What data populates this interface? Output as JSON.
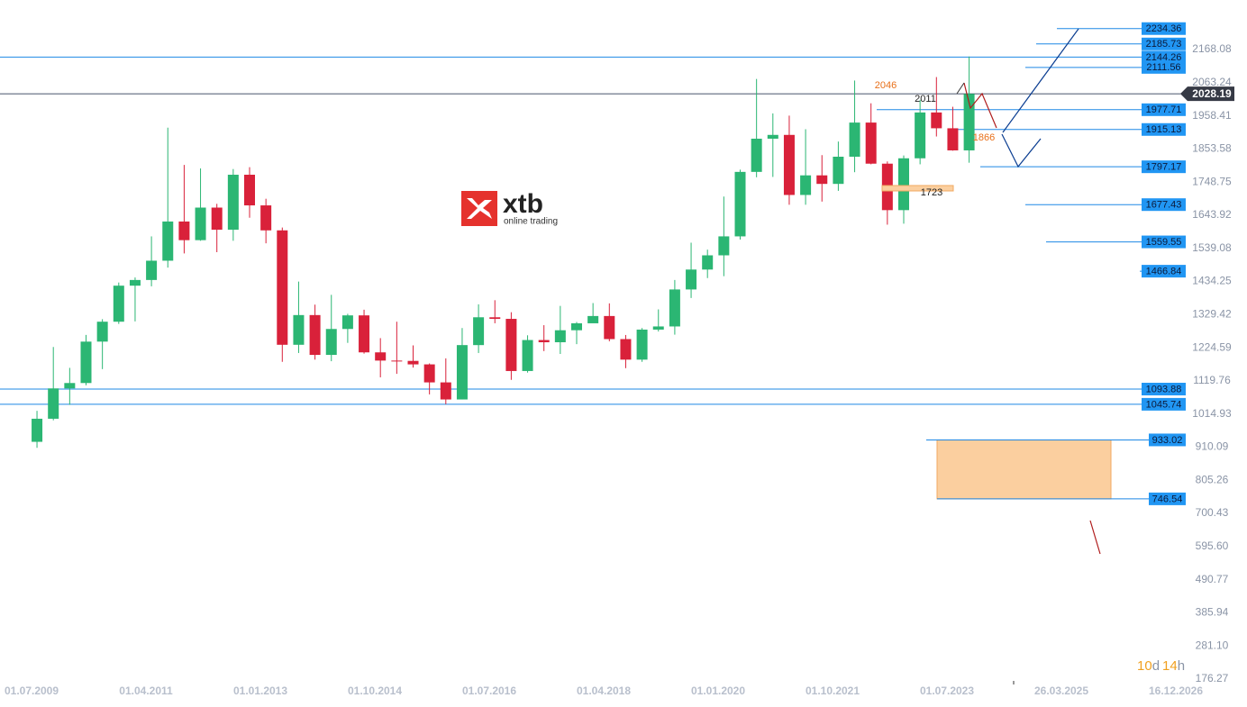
{
  "chart_data": {
    "type": "candlestick",
    "open": [
      927,
      1000,
      1096,
      1113,
      1244,
      1307,
      1421,
      1439,
      1500,
      1624,
      1565,
      1668,
      1598,
      1772,
      1675,
      1596,
      1234,
      1328,
      1202,
      1284,
      1327,
      1210,
      1184,
      1183,
      1172,
      1115,
      1061,
      1233,
      1321,
      1316,
      1151,
      1249,
      1242,
      1280,
      1302,
      1325,
      1252,
      1187,
      1282,
      1292,
      1409,
      1472,
      1517,
      1577,
      1781,
      1886,
      1898,
      1708,
      1770,
      1743,
      1829,
      1937,
      1807,
      1660,
      1824,
      1969,
      1919,
      1849
    ],
    "high": [
      1025,
      1227,
      1161,
      1265,
      1315,
      1431,
      1447,
      1577,
      1921,
      1803,
      1792,
      1680,
      1790,
      1796,
      1696,
      1605,
      1434,
      1361,
      1392,
      1332,
      1345,
      1255,
      1307,
      1232,
      1175,
      1191,
      1287,
      1362,
      1375,
      1337,
      1264,
      1296,
      1357,
      1306,
      1366,
      1365,
      1265,
      1287,
      1346,
      1439,
      1557,
      1535,
      1703,
      1788,
      2075,
      1966,
      1959,
      1916,
      1834,
      1877,
      2070,
      1998,
      1814,
      1833,
      2009,
      2081,
      1987,
      2146
    ],
    "low": [
      908,
      995,
      1044,
      1106,
      1157,
      1300,
      1308,
      1419,
      1478,
      1523,
      1563,
      1527,
      1563,
      1636,
      1555,
      1180,
      1208,
      1187,
      1182,
      1240,
      1206,
      1131,
      1142,
      1162,
      1077,
      1046,
      1061,
      1208,
      1302,
      1123,
      1146,
      1214,
      1205,
      1236,
      1303,
      1245,
      1160,
      1180,
      1276,
      1266,
      1382,
      1445,
      1451,
      1567,
      1764,
      1765,
      1677,
      1677,
      1687,
      1721,
      1780,
      1805,
      1614,
      1617,
      1805,
      1893,
      1848,
      1810
    ],
    "close": [
      1000,
      1096,
      1113,
      1244,
      1307,
      1421,
      1439,
      1500,
      1624,
      1565,
      1668,
      1598,
      1772,
      1675,
      1596,
      1234,
      1328,
      1202,
      1284,
      1327,
      1210,
      1184,
      1183,
      1172,
      1115,
      1061,
      1233,
      1321,
      1316,
      1151,
      1249,
      1242,
      1280,
      1302,
      1325,
      1252,
      1187,
      1282,
      1292,
      1409,
      1472,
      1517,
      1577,
      1781,
      1886,
      1898,
      1708,
      1770,
      1743,
      1829,
      1937,
      1807,
      1660,
      1824,
      1969,
      1919,
      1849,
      2028
    ],
    "up_color": "#2bb673",
    "down_color": "#d9213a",
    "ylim": [
      167.8,
      2324.8
    ],
    "yticks": [
      2168.08,
      2063.24,
      1958.41,
      1853.58,
      1748.75,
      1643.92,
      1539.08,
      1434.25,
      1329.42,
      1224.59,
      1119.76,
      1014.93,
      910.09,
      805.26,
      700.43,
      {
        "value": 595.6,
        "label": "595.60"
      },
      490.77,
      385.94,
      {
        "value": 281.1,
        "label": "281.10"
      },
      176.27
    ],
    "xtick_labels": [
      "01.07.2009",
      "01.04.2011",
      "01.01.2013",
      "01.10.2014",
      "01.07.2016",
      "01.04.2018",
      "01.01.2020",
      "01.10.2021",
      "01.07.2023",
      "26.03.2025",
      "16.12.2026"
    ],
    "levels": [
      2234.36,
      2185.73,
      2144.26,
      2111.56,
      1977.71,
      1915.13,
      1797.17,
      1677.43,
      1559.55,
      1466.84,
      1093.88,
      1045.74,
      933.02,
      746.54
    ],
    "level_color": "#1e88e5",
    "last_price": 2028.19,
    "annotations": [
      "2046",
      "2011",
      "1866",
      "1723"
    ],
    "logo": {
      "name": "xtb",
      "tagline": "online trading"
    },
    "timer": [
      "10",
      "d",
      "14",
      "h"
    ]
  }
}
